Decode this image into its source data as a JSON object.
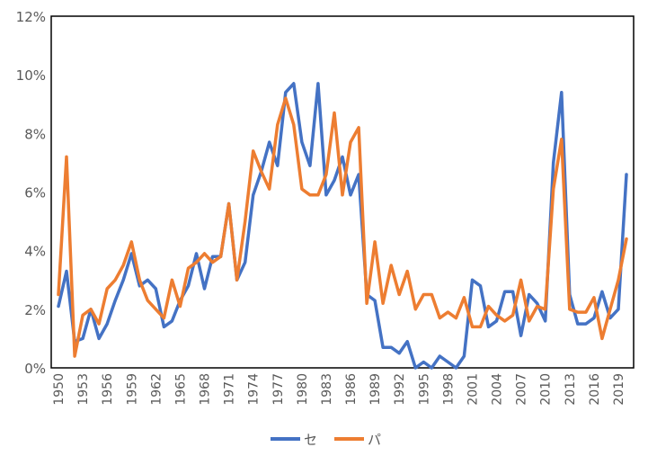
{
  "colors": {
    "se": "#4472C4",
    "pa": "#ED7D31",
    "axis": "#595959",
    "frame": "#000000"
  },
  "chart_data": {
    "type": "line",
    "title": "",
    "xlabel": "",
    "ylabel": "",
    "grid": false,
    "legend_position": "bottom",
    "ylim": [
      0,
      12
    ],
    "y_tick_labels": [
      "0%",
      "2%",
      "4%",
      "6%",
      "8%",
      "10%",
      "12%"
    ],
    "x_tick_labels": [
      "1950",
      "1953",
      "1956",
      "1959",
      "1962",
      "1965",
      "1968",
      "1971",
      "1974",
      "1977",
      "1980",
      "1983",
      "1986",
      "1989",
      "1992",
      "1995",
      "1998",
      "2001",
      "2004",
      "2007",
      "2010",
      "2013",
      "2016",
      "2019"
    ],
    "x": [
      1950,
      1951,
      1952,
      1953,
      1954,
      1955,
      1956,
      1957,
      1958,
      1959,
      1960,
      1961,
      1962,
      1963,
      1964,
      1965,
      1966,
      1967,
      1968,
      1969,
      1970,
      1971,
      1972,
      1973,
      1974,
      1975,
      1976,
      1977,
      1978,
      1979,
      1980,
      1981,
      1982,
      1983,
      1984,
      1985,
      1986,
      1987,
      1988,
      1989,
      1990,
      1991,
      1992,
      1993,
      1994,
      1995,
      1996,
      1997,
      1998,
      1999,
      2000,
      2001,
      2002,
      2003,
      2004,
      2005,
      2006,
      2007,
      2008,
      2009,
      2010,
      2011,
      2012,
      2013,
      2014,
      2015,
      2016,
      2017,
      2018,
      2019,
      2020
    ],
    "series": [
      {
        "name": "セ",
        "color": "#4472C4",
        "values": [
          2.1,
          3.3,
          0.9,
          1.0,
          2.0,
          1.0,
          1.5,
          2.3,
          3.0,
          3.9,
          2.8,
          3.0,
          2.7,
          1.4,
          1.6,
          2.3,
          2.8,
          3.9,
          2.7,
          3.8,
          3.8,
          5.6,
          3.0,
          3.6,
          5.9,
          6.7,
          7.7,
          6.9,
          9.4,
          9.7,
          7.7,
          6.9,
          9.7,
          5.9,
          6.4,
          7.2,
          5.9,
          6.6,
          2.5,
          2.3,
          0.7,
          0.7,
          0.5,
          0.9,
          0.0,
          0.2,
          0.0,
          0.4,
          0.2,
          0.0,
          0.4,
          3.0,
          2.8,
          1.4,
          1.6,
          2.6,
          2.6,
          1.1,
          2.5,
          2.2,
          1.6,
          7.0,
          9.4,
          2.5,
          1.5,
          1.5,
          1.7,
          2.6,
          1.7,
          2.0,
          6.6
        ]
      },
      {
        "name": "パ",
        "color": "#ED7D31",
        "values": [
          2.5,
          7.2,
          0.4,
          1.8,
          2.0,
          1.5,
          2.7,
          3.0,
          3.5,
          4.3,
          3.0,
          2.3,
          2.0,
          1.7,
          3.0,
          2.1,
          3.4,
          3.6,
          3.9,
          3.6,
          3.8,
          5.6,
          3.0,
          5.0,
          7.4,
          6.7,
          6.1,
          8.3,
          9.2,
          8.3,
          6.1,
          5.9,
          5.9,
          6.6,
          8.7,
          5.9,
          7.7,
          8.2,
          2.2,
          4.3,
          2.2,
          3.5,
          2.5,
          3.3,
          2.0,
          2.5,
          2.5,
          1.7,
          1.9,
          1.7,
          2.4,
          1.4,
          1.4,
          2.1,
          1.8,
          1.6,
          1.8,
          3.0,
          1.6,
          2.1,
          2.0,
          6.1,
          7.8,
          2.0,
          1.9,
          1.9,
          2.4,
          1.0,
          2.0,
          3.0,
          4.4
        ]
      }
    ]
  }
}
